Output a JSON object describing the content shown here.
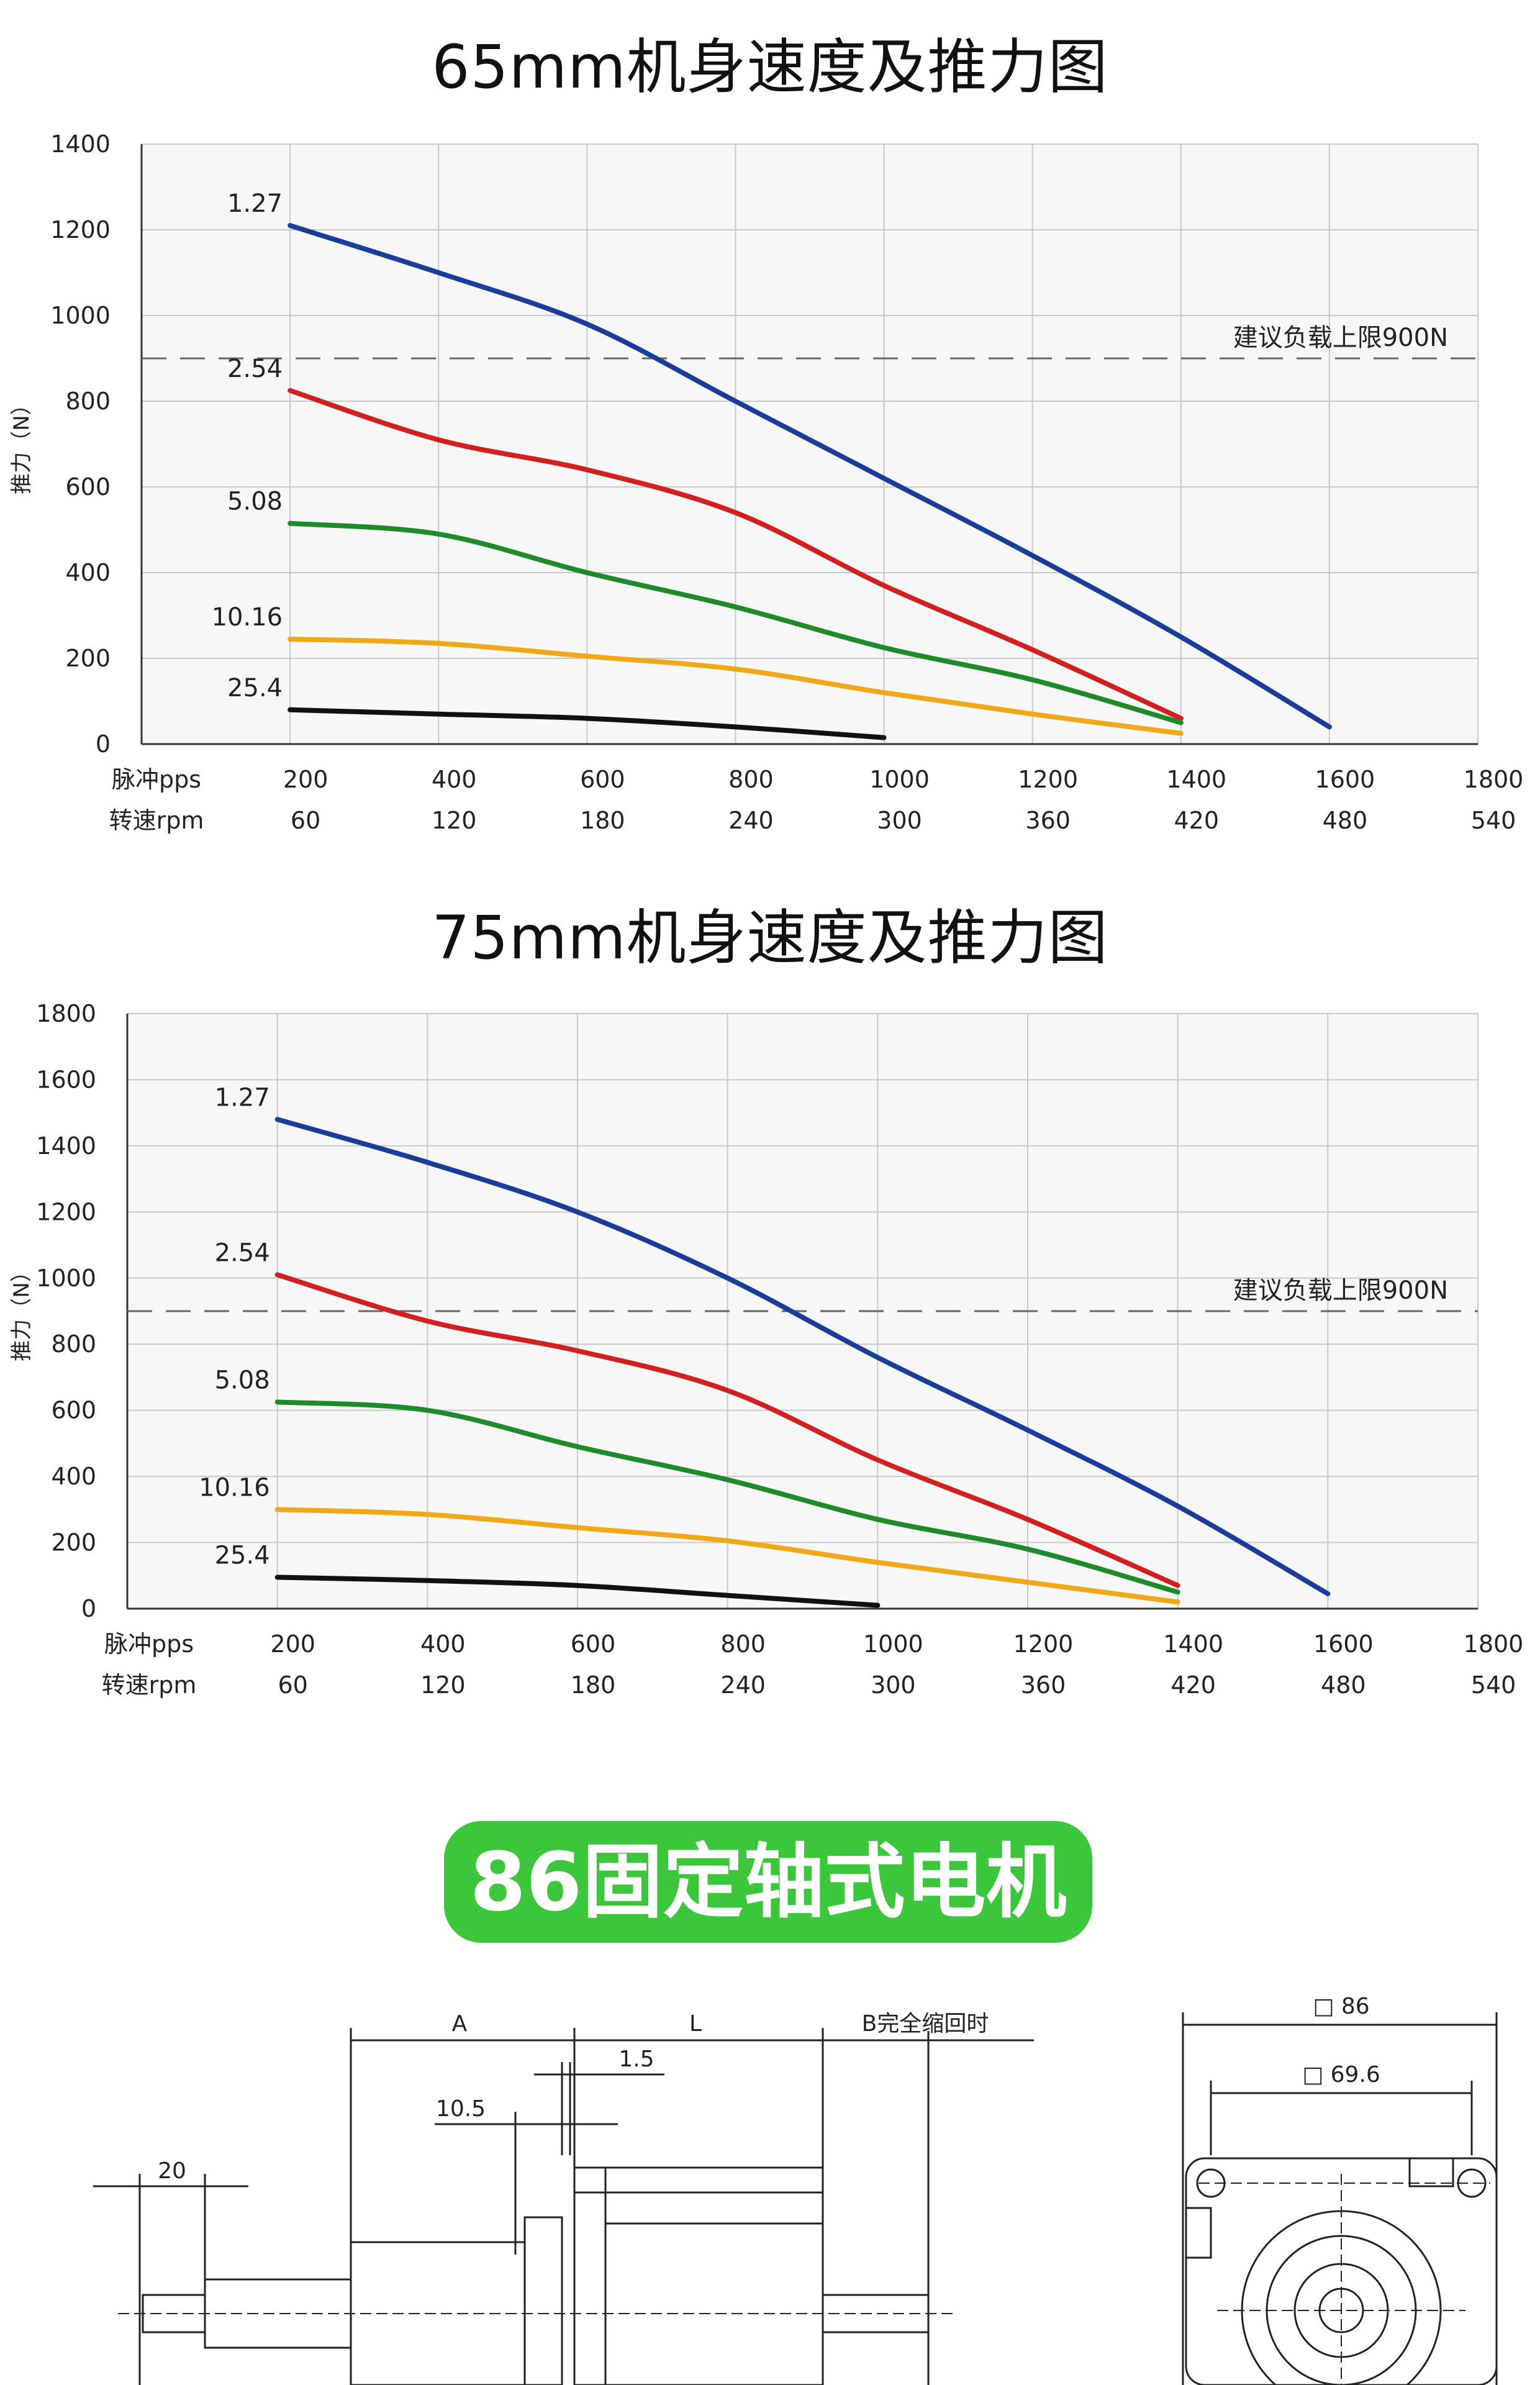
{
  "chart_data": [
    {
      "type": "line",
      "title": "65mm机身速度及推力图",
      "ylabel": "推力（N）",
      "x_row_label": "脉冲pps",
      "x2_row_label": "转速rpm",
      "x_ticks": [
        200,
        400,
        600,
        800,
        1000,
        1200,
        1400,
        1600,
        1800
      ],
      "x2_ticks": [
        60,
        120,
        180,
        240,
        300,
        360,
        420,
        480,
        540
      ],
      "y_ticks": [
        0,
        200,
        400,
        600,
        800,
        1000,
        1200,
        1400
      ],
      "xlim": [
        0,
        1800
      ],
      "ylim": [
        0,
        1400
      ],
      "grid": true,
      "reference_line": {
        "value": 900,
        "label": "建议负载上限900N"
      },
      "series": [
        {
          "name": "1.27",
          "color": "#1a3d9a",
          "x": [
            200,
            400,
            600,
            800,
            1000,
            1200,
            1400,
            1600
          ],
          "y": [
            1210,
            1100,
            980,
            800,
            620,
            440,
            250,
            40
          ]
        },
        {
          "name": "2.54",
          "color": "#d21f1f",
          "x": [
            200,
            400,
            600,
            800,
            1000,
            1200,
            1400
          ],
          "y": [
            825,
            710,
            640,
            540,
            370,
            220,
            60
          ]
        },
        {
          "name": "5.08",
          "color": "#1f8a2a",
          "x": [
            200,
            400,
            600,
            800,
            1000,
            1200,
            1400
          ],
          "y": [
            515,
            490,
            400,
            320,
            225,
            150,
            50
          ]
        },
        {
          "name": "10.16",
          "color": "#f0a818",
          "x": [
            200,
            400,
            600,
            800,
            1000,
            1200,
            1400
          ],
          "y": [
            245,
            235,
            205,
            175,
            120,
            70,
            25
          ]
        },
        {
          "name": "25.4",
          "color": "#111111",
          "x": [
            200,
            400,
            600,
            800,
            1000
          ],
          "y": [
            80,
            70,
            60,
            40,
            15
          ]
        }
      ]
    },
    {
      "type": "line",
      "title": "75mm机身速度及推力图",
      "ylabel": "推力（N）",
      "x_row_label": "脉冲pps",
      "x2_row_label": "转速rpm",
      "x_ticks": [
        200,
        400,
        600,
        800,
        1000,
        1200,
        1400,
        1600,
        1800
      ],
      "x2_ticks": [
        60,
        120,
        180,
        240,
        300,
        360,
        420,
        480,
        540
      ],
      "y_ticks": [
        0,
        200,
        400,
        600,
        800,
        1000,
        1200,
        1400,
        1600,
        1800
      ],
      "xlim": [
        0,
        1800
      ],
      "ylim": [
        0,
        1800
      ],
      "grid": true,
      "reference_line": {
        "value": 900,
        "label": "建议负载上限900N"
      },
      "series": [
        {
          "name": "1.27",
          "color": "#1a3d9a",
          "x": [
            200,
            400,
            600,
            800,
            1000,
            1200,
            1400,
            1600
          ],
          "y": [
            1480,
            1350,
            1200,
            1000,
            760,
            540,
            310,
            45
          ]
        },
        {
          "name": "2.54",
          "color": "#d21f1f",
          "x": [
            200,
            400,
            600,
            800,
            1000,
            1200,
            1400
          ],
          "y": [
            1010,
            870,
            780,
            660,
            450,
            270,
            70
          ]
        },
        {
          "name": "5.08",
          "color": "#1f8a2a",
          "x": [
            200,
            400,
            600,
            800,
            1000,
            1200,
            1400
          ],
          "y": [
            625,
            600,
            490,
            390,
            270,
            180,
            50
          ]
        },
        {
          "name": "10.16",
          "color": "#f0a818",
          "x": [
            200,
            400,
            600,
            800,
            1000,
            1200,
            1400
          ],
          "y": [
            300,
            285,
            245,
            205,
            140,
            80,
            20
          ]
        },
        {
          "name": "25.4",
          "color": "#111111",
          "x": [
            200,
            400,
            600,
            800,
            1000
          ],
          "y": [
            95,
            85,
            70,
            40,
            10
          ]
        }
      ]
    }
  ],
  "banner": {
    "text": "86固定轴式电机"
  },
  "drawing": {
    "dim_A": "A",
    "dim_L": "L",
    "dim_B": "B完全缩回时",
    "dim_1_5": "1.5",
    "dim_10_5": "10.5",
    "dim_20": "20",
    "dim_86": "□ 86",
    "dim_69_6": "□ 69.6"
  }
}
